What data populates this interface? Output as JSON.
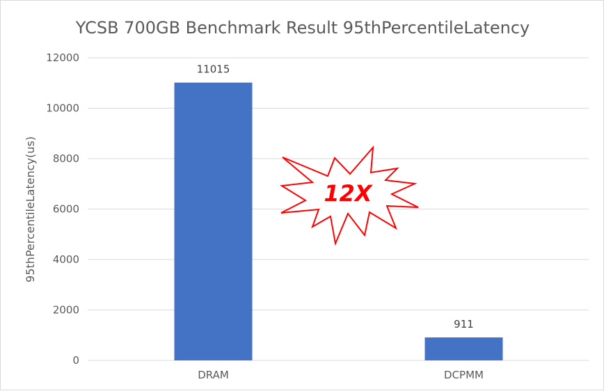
{
  "chart_data": {
    "type": "bar",
    "title": "YCSB 700GB Benchmark Result 95thPercentileLatency",
    "xlabel": "",
    "ylabel": "95thPercentileLatency(us)",
    "categories": [
      "DRAM",
      "DCPMM"
    ],
    "values": [
      11015,
      911
    ],
    "data_labels": [
      "11015",
      "911"
    ],
    "ylim": [
      0,
      12000
    ],
    "yticks": [
      "0",
      "2000",
      "4000",
      "6000",
      "8000",
      "10000",
      "12000"
    ],
    "grid": true,
    "legend": "none",
    "bar_color": "#4472c4",
    "annotation": {
      "text": "12X",
      "shape": "starburst",
      "color": "#ff0000"
    }
  }
}
